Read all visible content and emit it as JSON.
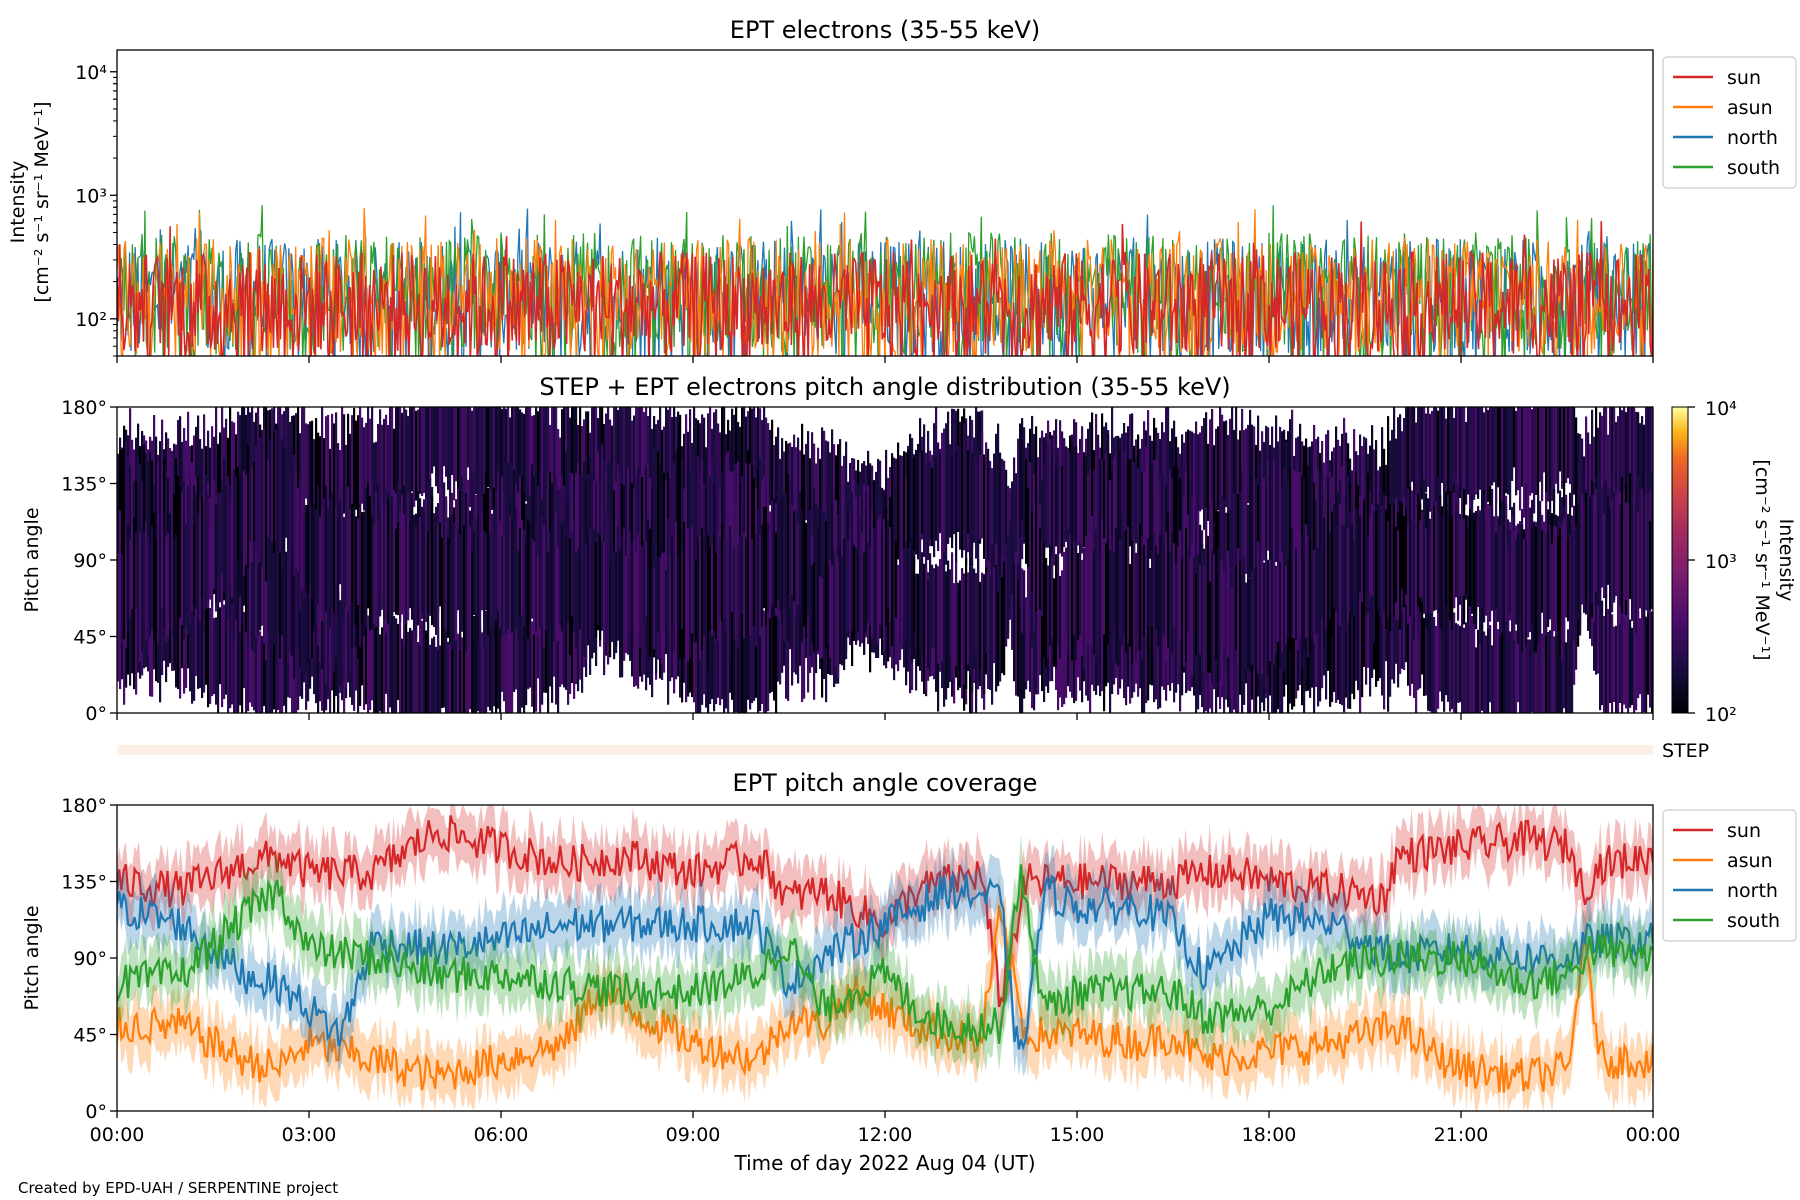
{
  "figure": {
    "footer": "Created by EPD-UAH / SERPENTINE project",
    "xlabel": "Time of day 2022 Aug 04 (UT)",
    "x_ticks": [
      "00:00",
      "03:00",
      "06:00",
      "09:00",
      "12:00",
      "15:00",
      "18:00",
      "21:00",
      "00:00"
    ]
  },
  "colors": {
    "sun": "#d62728",
    "asun": "#ff7f0e",
    "north": "#1f77b4",
    "south": "#2ca02c",
    "step_band": "#fdeee6"
  },
  "chart_data": [
    {
      "id": "intensity",
      "type": "line",
      "title": "EPT electrons (35-55 keV)",
      "ylabel": [
        "Intensity",
        "[cm⁻² s⁻¹ sr⁻¹ MeV⁻¹]"
      ],
      "yscale": "log",
      "ylim": [
        50,
        15000
      ],
      "xlim_hours": [
        0,
        24
      ],
      "y_ticks": [
        {
          "value": 100,
          "label": "10²"
        },
        {
          "value": 1000,
          "label": "10³"
        },
        {
          "value": 10000,
          "label": "10⁴"
        }
      ],
      "legend_position": "outside right",
      "series": [
        {
          "name": "sun",
          "color": "#d62728",
          "typical_range": [
            50,
            350
          ]
        },
        {
          "name": "asun",
          "color": "#ff7f0e",
          "typical_range": [
            50,
            450
          ]
        },
        {
          "name": "north",
          "color": "#1f77b4",
          "typical_range": [
            50,
            450
          ]
        },
        {
          "name": "south",
          "color": "#2ca02c",
          "typical_range": [
            50,
            500
          ]
        }
      ]
    },
    {
      "id": "pad",
      "type": "heatmap",
      "title": "STEP + EPT electrons pitch angle distribution (35-55 keV)",
      "ylabel": "Pitch angle",
      "ylim": [
        0,
        180
      ],
      "y_ticks": [
        "0°",
        "45°",
        "90°",
        "135°",
        "180°"
      ],
      "colorbar": {
        "label": [
          "Intensity",
          "[cm⁻² s⁻¹ sr⁻¹ MeV⁻¹]"
        ],
        "scale": "log",
        "range": [
          100,
          10000
        ],
        "ticks": [
          "10²",
          "10³",
          "10⁴"
        ],
        "colormap": "inferno"
      }
    },
    {
      "id": "step",
      "type": "heatmap",
      "label": "STEP"
    },
    {
      "id": "coverage",
      "type": "line",
      "title": "EPT pitch angle coverage",
      "ylabel": "Pitch angle",
      "ylim": [
        0,
        180
      ],
      "xlim_hours": [
        0,
        24
      ],
      "y_ticks": [
        "0°",
        "45°",
        "90°",
        "135°",
        "180°"
      ],
      "legend_position": "outside right",
      "series": [
        {
          "name": "sun",
          "color": "#d62728",
          "knots": [
            [
              0,
              135
            ],
            [
              1,
              130
            ],
            [
              2,
              145
            ],
            [
              2.5,
              150
            ],
            [
              3,
              140
            ],
            [
              4,
              140
            ],
            [
              5,
              165
            ],
            [
              6,
              155
            ],
            [
              7,
              145
            ],
            [
              8,
              150
            ],
            [
              9,
              140
            ],
            [
              10,
              150
            ],
            [
              10.5,
              125
            ],
            [
              11,
              130
            ],
            [
              12,
              110
            ],
            [
              12.5,
              130
            ],
            [
              13.5,
              140
            ],
            [
              13.8,
              65
            ],
            [
              14.2,
              135
            ],
            [
              15,
              135
            ],
            [
              16,
              135
            ],
            [
              16.5,
              135
            ],
            [
              17,
              140
            ],
            [
              17.5,
              140
            ],
            [
              18,
              135
            ],
            [
              19,
              130
            ],
            [
              19.8,
              125
            ],
            [
              20,
              150
            ],
            [
              21,
              155
            ],
            [
              22,
              160
            ],
            [
              22.7,
              155
            ],
            [
              22.9,
              130
            ],
            [
              23.2,
              145
            ],
            [
              24,
              150
            ]
          ]
        },
        {
          "name": "asun",
          "color": "#ff7f0e",
          "knots": [
            [
              0,
              50
            ],
            [
              1,
              50
            ],
            [
              2,
              30
            ],
            [
              2.5,
              25
            ],
            [
              3,
              40
            ],
            [
              4,
              30
            ],
            [
              5,
              20
            ],
            [
              6,
              30
            ],
            [
              7,
              40
            ],
            [
              7.5,
              70
            ],
            [
              8,
              60
            ],
            [
              9,
              40
            ],
            [
              10,
              30
            ],
            [
              10.5,
              55
            ],
            [
              11,
              50
            ],
            [
              11.5,
              70
            ],
            [
              12,
              60
            ],
            [
              12.5,
              50
            ],
            [
              13,
              45
            ],
            [
              13.5,
              40
            ],
            [
              13.8,
              115
            ],
            [
              14.2,
              45
            ],
            [
              15,
              45
            ],
            [
              16,
              40
            ],
            [
              16.5,
              45
            ],
            [
              17,
              30
            ],
            [
              18,
              35
            ],
            [
              19,
              40
            ],
            [
              20,
              50
            ],
            [
              20.5,
              35
            ],
            [
              21,
              25
            ],
            [
              22,
              20
            ],
            [
              22.7,
              25
            ],
            [
              22.9,
              100
            ],
            [
              23.2,
              30
            ],
            [
              24,
              30
            ]
          ]
        },
        {
          "name": "north",
          "color": "#1f77b4",
          "knots": [
            [
              0,
              120
            ],
            [
              1,
              110
            ],
            [
              2,
              80
            ],
            [
              2.5,
              75
            ],
            [
              3,
              60
            ],
            [
              3.5,
              45
            ],
            [
              4,
              100
            ],
            [
              5,
              95
            ],
            [
              6,
              100
            ],
            [
              7,
              110
            ],
            [
              8,
              110
            ],
            [
              9,
              110
            ],
            [
              10,
              110
            ],
            [
              10.5,
              75
            ],
            [
              11,
              90
            ],
            [
              12,
              110
            ],
            [
              13,
              130
            ],
            [
              13.8,
              125
            ],
            [
              14.1,
              25
            ],
            [
              14.5,
              130
            ],
            [
              15,
              120
            ],
            [
              16,
              120
            ],
            [
              16.5,
              110
            ],
            [
              17,
              80
            ],
            [
              18,
              115
            ],
            [
              19,
              110
            ],
            [
              20,
              90
            ],
            [
              21,
              95
            ],
            [
              22,
              90
            ],
            [
              22.7,
              90
            ],
            [
              23,
              100
            ],
            [
              24,
              100
            ]
          ]
        },
        {
          "name": "south",
          "color": "#2ca02c",
          "knots": [
            [
              0,
              75
            ],
            [
              1,
              80
            ],
            [
              2,
              115
            ],
            [
              2.5,
              130
            ],
            [
              3,
              95
            ],
            [
              4,
              90
            ],
            [
              5,
              80
            ],
            [
              6,
              80
            ],
            [
              7,
              75
            ],
            [
              8,
              70
            ],
            [
              9,
              70
            ],
            [
              10,
              80
            ],
            [
              10.5,
              100
            ],
            [
              11,
              60
            ],
            [
              12,
              80
            ],
            [
              12.5,
              60
            ],
            [
              13,
              50
            ],
            [
              13.8,
              50
            ],
            [
              14.1,
              140
            ],
            [
              14.5,
              60
            ],
            [
              15,
              70
            ],
            [
              16,
              70
            ],
            [
              16.5,
              70
            ],
            [
              17,
              55
            ],
            [
              18,
              60
            ],
            [
              19,
              85
            ],
            [
              20,
              90
            ],
            [
              21,
              90
            ],
            [
              22,
              75
            ],
            [
              22.7,
              80
            ],
            [
              23,
              95
            ],
            [
              24,
              90
            ]
          ]
        }
      ]
    }
  ]
}
